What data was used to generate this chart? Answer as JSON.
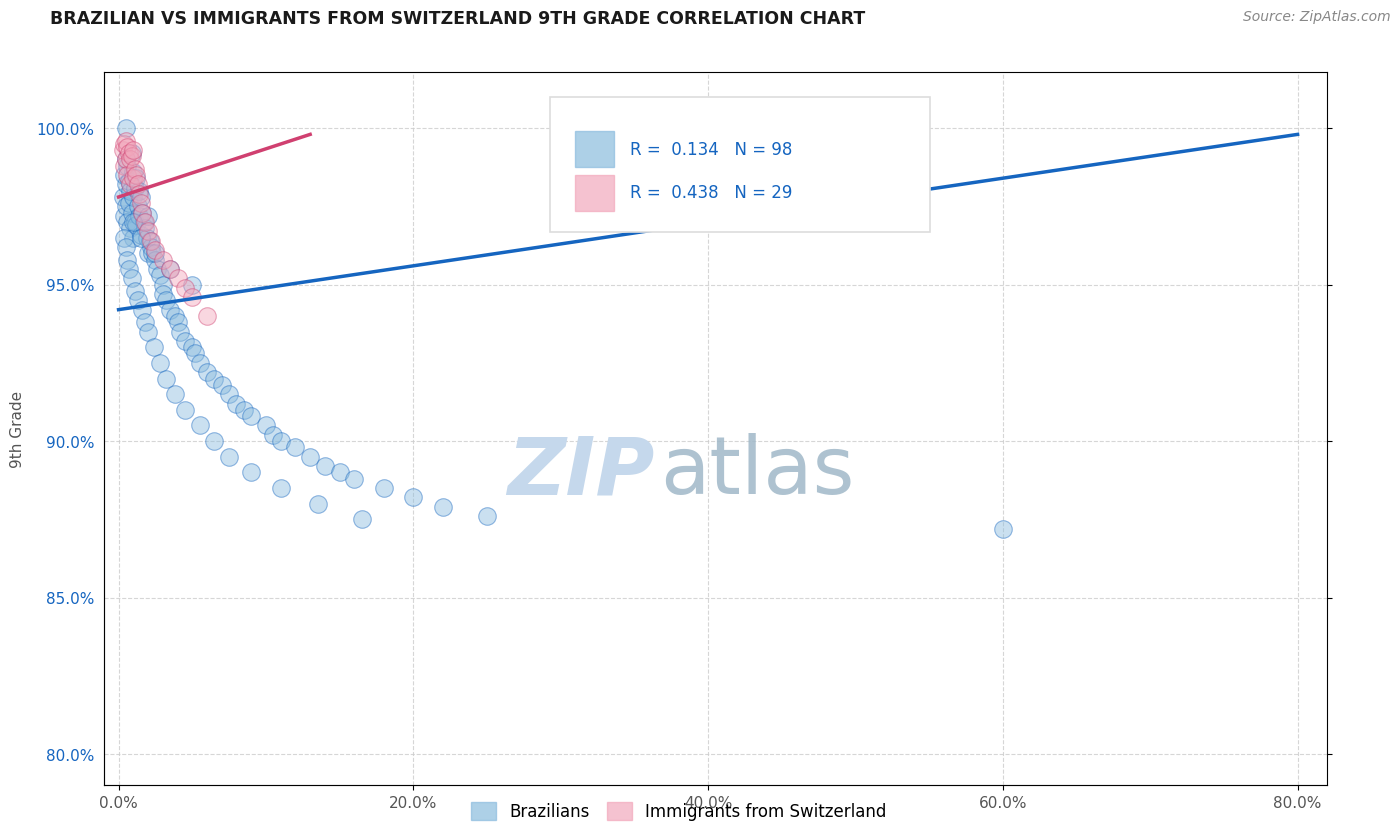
{
  "title": "BRAZILIAN VS IMMIGRANTS FROM SWITZERLAND 9TH GRADE CORRELATION CHART",
  "source": "Source: ZipAtlas.com",
  "xlabel_vals": [
    0.0,
    20.0,
    40.0,
    60.0,
    80.0
  ],
  "ylabel_vals": [
    80.0,
    85.0,
    90.0,
    95.0,
    100.0
  ],
  "xlim": [
    -1.0,
    82.0
  ],
  "ylim": [
    79.0,
    101.8
  ],
  "ylabel": "9th Grade",
  "legend_blue_label": "Brazilians",
  "legend_pink_label": "Immigrants from Switzerland",
  "R_blue": 0.134,
  "N_blue": 98,
  "R_pink": 0.438,
  "N_pink": 29,
  "blue_color": "#8BBCDE",
  "pink_color": "#F2A8BC",
  "blue_line_color": "#1565C0",
  "pink_line_color": "#D04070",
  "watermark_zip": "ZIP",
  "watermark_atlas": "atlas",
  "watermark_color": "#C5D8EC",
  "background_color": "#ffffff",
  "grid_color": "#CCCCCC",
  "title_color": "#1a1a1a",
  "blue_scatter_x": [
    0.3,
    0.4,
    0.4,
    0.5,
    0.5,
    0.5,
    0.6,
    0.6,
    0.7,
    0.7,
    0.8,
    0.8,
    0.9,
    0.9,
    1.0,
    1.0,
    1.0,
    1.1,
    1.1,
    1.2,
    1.2,
    1.3,
    1.4,
    1.4,
    1.5,
    1.5,
    1.6,
    1.7,
    1.8,
    1.9,
    2.0,
    2.0,
    2.1,
    2.2,
    2.3,
    2.5,
    2.6,
    2.8,
    3.0,
    3.0,
    3.2,
    3.5,
    3.8,
    4.0,
    4.2,
    4.5,
    5.0,
    5.2,
    5.5,
    6.0,
    6.5,
    7.0,
    7.5,
    8.0,
    8.5,
    9.0,
    10.0,
    10.5,
    11.0,
    12.0,
    13.0,
    14.0,
    15.0,
    16.0,
    18.0,
    20.0,
    22.0,
    25.0,
    0.4,
    0.5,
    0.6,
    0.7,
    0.9,
    1.1,
    1.3,
    1.6,
    1.8,
    2.0,
    2.4,
    2.8,
    3.2,
    3.8,
    4.5,
    5.5,
    6.5,
    7.5,
    9.0,
    11.0,
    13.5,
    16.5,
    60.0,
    0.5,
    1.0,
    1.5,
    2.5,
    3.5,
    5.0
  ],
  "blue_scatter_y": [
    97.8,
    98.5,
    97.2,
    99.0,
    98.2,
    97.5,
    98.8,
    97.0,
    98.3,
    97.6,
    98.0,
    96.8,
    99.2,
    97.3,
    98.6,
    97.8,
    96.5,
    98.1,
    97.0,
    98.4,
    96.9,
    97.5,
    98.0,
    97.2,
    97.8,
    96.6,
    97.3,
    97.0,
    96.8,
    96.5,
    97.2,
    96.0,
    96.4,
    96.2,
    96.0,
    95.8,
    95.5,
    95.3,
    95.0,
    94.7,
    94.5,
    94.2,
    94.0,
    93.8,
    93.5,
    93.2,
    93.0,
    92.8,
    92.5,
    92.2,
    92.0,
    91.8,
    91.5,
    91.2,
    91.0,
    90.8,
    90.5,
    90.2,
    90.0,
    89.8,
    89.5,
    89.2,
    89.0,
    88.8,
    88.5,
    88.2,
    87.9,
    87.6,
    96.5,
    96.2,
    95.8,
    95.5,
    95.2,
    94.8,
    94.5,
    94.2,
    93.8,
    93.5,
    93.0,
    92.5,
    92.0,
    91.5,
    91.0,
    90.5,
    90.0,
    89.5,
    89.0,
    88.5,
    88.0,
    87.5,
    87.2,
    100.0,
    97.0,
    96.5,
    96.0,
    95.5,
    95.0
  ],
  "pink_scatter_x": [
    0.3,
    0.4,
    0.4,
    0.5,
    0.5,
    0.6,
    0.6,
    0.7,
    0.8,
    0.8,
    0.9,
    1.0,
    1.0,
    1.1,
    1.2,
    1.3,
    1.4,
    1.5,
    1.6,
    1.8,
    2.0,
    2.2,
    2.5,
    3.0,
    3.5,
    4.0,
    4.5,
    5.0,
    6.0
  ],
  "pink_scatter_y": [
    99.3,
    99.5,
    98.8,
    99.6,
    99.0,
    99.4,
    98.5,
    99.2,
    99.0,
    98.2,
    99.1,
    99.3,
    98.4,
    98.7,
    98.5,
    98.2,
    97.9,
    97.6,
    97.3,
    97.0,
    96.7,
    96.4,
    96.1,
    95.8,
    95.5,
    95.2,
    94.9,
    94.6,
    94.0
  ],
  "blue_trendline_x": [
    0.0,
    80.0
  ],
  "blue_trendline_y": [
    94.2,
    99.8
  ],
  "pink_trendline_x": [
    0.0,
    13.0
  ],
  "pink_trendline_y": [
    97.8,
    99.8
  ]
}
